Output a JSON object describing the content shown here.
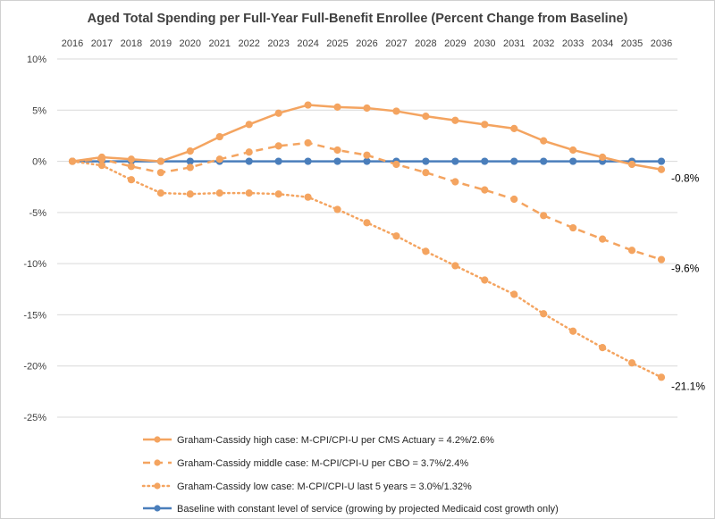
{
  "chart_data": {
    "type": "line",
    "title": "Aged Total Spending per Full-Year Full-Benefit Enrollee (Percent Change from Baseline)",
    "xlabel": "",
    "ylabel": "",
    "x": [
      "2016",
      "2017",
      "2018",
      "2019",
      "2020",
      "2021",
      "2022",
      "2023",
      "2024",
      "2025",
      "2026",
      "2027",
      "2028",
      "2029",
      "2030",
      "2031",
      "2032",
      "2033",
      "2034",
      "2035",
      "2036"
    ],
    "ylim": [
      -25,
      10
    ],
    "yticks": [
      10,
      5,
      0,
      -5,
      -10,
      -15,
      -20,
      -25
    ],
    "ytick_labels": [
      "10%",
      "5%",
      "0%",
      "-5%",
      "-10%",
      "-15%",
      "-20%",
      "-25%"
    ],
    "grid": true,
    "legend_position": "bottom",
    "series": [
      {
        "name": "Graham-Cassidy high case: M-CPI/CPI-U per CMS Actuary = 4.2%/2.6%",
        "color": "#F4A460",
        "style": "solid",
        "values": [
          0,
          0.4,
          0.2,
          0.0,
          1.0,
          2.4,
          3.6,
          4.7,
          5.5,
          5.3,
          5.2,
          4.9,
          4.4,
          4.0,
          3.6,
          3.2,
          2.0,
          1.1,
          0.4,
          -0.3,
          -0.8
        ],
        "end_label": "-0.8%"
      },
      {
        "name": "Graham-Cassidy middle case: M-CPI/CPI-U per CBO = 3.7%/2.4%",
        "color": "#F4A460",
        "style": "dashed",
        "values": [
          0,
          0.2,
          -0.5,
          -1.1,
          -0.6,
          0.2,
          0.9,
          1.5,
          1.8,
          1.1,
          0.6,
          -0.3,
          -1.1,
          -2.0,
          -2.8,
          -3.7,
          -5.3,
          -6.5,
          -7.6,
          -8.7,
          -9.6
        ],
        "end_label": "-9.6%"
      },
      {
        "name": "Graham-Cassidy low case: M-CPI/CPI-U last 5 years = 3.0%/1.32%",
        "color": "#F4A460",
        "style": "dotted",
        "values": [
          0,
          -0.4,
          -1.8,
          -3.1,
          -3.2,
          -3.1,
          -3.1,
          -3.2,
          -3.5,
          -4.7,
          -6.0,
          -7.3,
          -8.8,
          -10.2,
          -11.6,
          -13.0,
          -14.9,
          -16.6,
          -18.2,
          -19.7,
          -21.1
        ],
        "end_label": "-21.1%"
      },
      {
        "name": "Baseline with constant level of service (growing by projected Medicaid cost growth only)",
        "color": "#4A7EBB",
        "style": "solid",
        "values": [
          0,
          0,
          0,
          0,
          0,
          0,
          0,
          0,
          0,
          0,
          0,
          0,
          0,
          0,
          0,
          0,
          0,
          0,
          0,
          0,
          0
        ],
        "end_label": ""
      }
    ]
  }
}
